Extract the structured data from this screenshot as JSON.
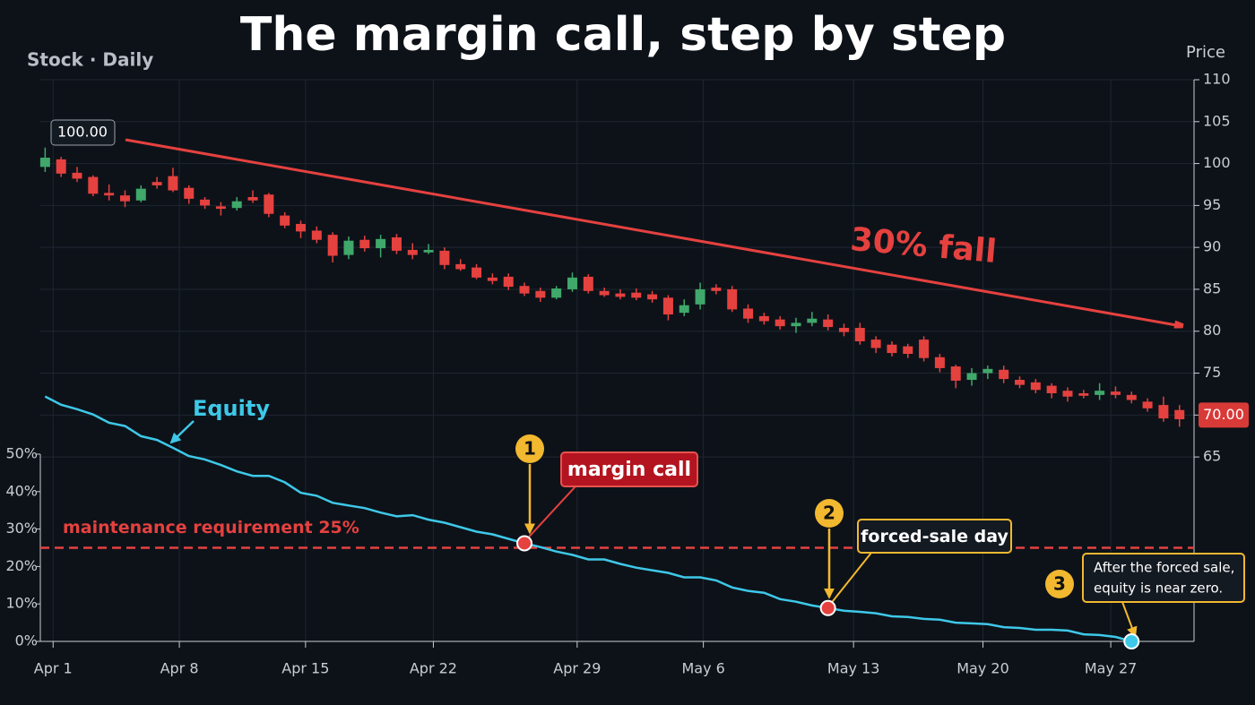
{
  "chart_data": {
    "type": "candlestick",
    "title": "The margin call, step by step",
    "subtitle": "Stock · Daily",
    "y_label": "Price",
    "up_color": "#3fa86a",
    "down_color": "#e5413f",
    "grid": true,
    "x": [
      0,
      1,
      2,
      3,
      4,
      5,
      6,
      7,
      8,
      9,
      10,
      11,
      12,
      13,
      14,
      15,
      16,
      17,
      18,
      19,
      20,
      21,
      22,
      23,
      24,
      25,
      26,
      27,
      28,
      29,
      30,
      31,
      32,
      33,
      34,
      35,
      36,
      37,
      38,
      39,
      40,
      41,
      42,
      43,
      44,
      45,
      46,
      47,
      48,
      49,
      50,
      51,
      52,
      53,
      54,
      55,
      56,
      57,
      58,
      59,
      60,
      61,
      62,
      63,
      64,
      65,
      66,
      67,
      68,
      69,
      70,
      71
    ],
    "open": [
      99.6,
      100.5,
      98.9,
      98.4,
      96.5,
      96.2,
      95.6,
      97.8,
      98.5,
      97.1,
      95.7,
      94.9,
      94.7,
      96.0,
      96.3,
      93.8,
      92.8,
      92.0,
      91.5,
      89.1,
      90.9,
      89.9,
      91.2,
      89.7,
      89.4,
      89.6,
      88.0,
      87.6,
      86.4,
      86.5,
      85.4,
      84.8,
      84.0,
      85.0,
      86.5,
      84.8,
      84.5,
      84.6,
      84.4,
      84.0,
      82.2,
      83.2,
      85.2,
      85.0,
      82.7,
      81.8,
      81.4,
      80.6,
      81.0,
      81.4,
      80.4,
      80.4,
      79.0,
      78.4,
      78.2,
      79.0,
      76.9,
      75.8,
      74.2,
      75.0,
      75.4,
      74.2,
      73.9,
      73.5,
      72.9,
      72.6,
      72.4,
      72.8,
      72.4,
      71.6,
      71.2,
      70.6
    ],
    "high": [
      101.9,
      100.8,
      99.6,
      98.6,
      97.5,
      96.8,
      97.4,
      98.4,
      99.5,
      97.4,
      96.0,
      95.4,
      96.0,
      96.8,
      96.5,
      94.2,
      93.2,
      92.5,
      91.8,
      91.3,
      91.4,
      91.5,
      91.6,
      90.5,
      90.4,
      90.0,
      88.6,
      88.0,
      86.9,
      86.9,
      85.8,
      85.2,
      85.4,
      87.0,
      86.8,
      85.2,
      85.0,
      85.1,
      84.8,
      84.3,
      83.8,
      85.8,
      85.6,
      85.4,
      83.2,
      82.2,
      81.8,
      81.6,
      82.3,
      82.0,
      80.9,
      81.0,
      79.4,
      78.8,
      78.5,
      79.4,
      77.3,
      76.0,
      75.6,
      75.9,
      75.9,
      74.6,
      74.3,
      73.8,
      73.3,
      73.0,
      73.8,
      73.4,
      72.8,
      72.0,
      72.2,
      71.2
    ],
    "low": [
      99.0,
      98.4,
      97.8,
      96.1,
      95.6,
      94.8,
      95.4,
      97.0,
      96.6,
      95.2,
      94.6,
      93.8,
      94.4,
      95.3,
      93.6,
      92.3,
      91.1,
      90.5,
      88.2,
      88.6,
      89.5,
      88.8,
      89.2,
      88.6,
      89.2,
      87.4,
      87.2,
      86.2,
      85.6,
      84.9,
      84.2,
      83.5,
      83.8,
      84.7,
      84.5,
      84.1,
      83.8,
      83.7,
      83.4,
      81.3,
      81.8,
      82.6,
      84.4,
      82.3,
      81.0,
      80.8,
      80.2,
      79.8,
      80.6,
      80.1,
      79.4,
      78.4,
      77.4,
      77.0,
      76.8,
      76.4,
      75.1,
      73.2,
      73.5,
      74.3,
      73.8,
      73.2,
      72.6,
      72.0,
      71.6,
      72.0,
      71.8,
      72.0,
      71.4,
      70.4,
      69.2,
      68.6
    ],
    "close": [
      100.7,
      98.8,
      98.2,
      96.4,
      96.2,
      95.5,
      97.0,
      97.4,
      96.8,
      95.8,
      95.0,
      94.6,
      95.5,
      95.6,
      94.0,
      92.6,
      91.9,
      90.9,
      89.0,
      90.8,
      89.9,
      91.0,
      89.6,
      89.1,
      89.7,
      87.9,
      87.4,
      86.4,
      86.0,
      85.3,
      84.5,
      84.0,
      85.1,
      86.4,
      84.8,
      84.3,
      84.1,
      84.0,
      83.8,
      82.0,
      83.1,
      85.0,
      84.8,
      82.6,
      81.5,
      81.2,
      80.6,
      81.0,
      81.5,
      80.5,
      79.9,
      78.8,
      78.0,
      77.4,
      77.3,
      76.8,
      75.6,
      74.1,
      75.0,
      75.5,
      74.3,
      73.6,
      73.0,
      72.6,
      72.2,
      72.3,
      72.9,
      72.4,
      71.8,
      70.8,
      69.6,
      69.5
    ],
    "xlim": [
      -0.3,
      71.8
    ],
    "xticks": [
      {
        "value": 0.5,
        "label": "Apr 1"
      },
      {
        "value": 8.4,
        "label": "Apr 8"
      },
      {
        "value": 16.3,
        "label": "Apr 15"
      },
      {
        "value": 24.3,
        "label": "Apr 22"
      },
      {
        "value": 33.3,
        "label": "Apr 29"
      },
      {
        "value": 41.2,
        "label": "May 6"
      },
      {
        "value": 50.6,
        "label": "May 13"
      },
      {
        "value": 58.7,
        "label": "May 20"
      },
      {
        "value": 66.7,
        "label": "May 27"
      }
    ],
    "ylim": [
      43,
      110
    ],
    "yticks": [
      65,
      70,
      75,
      80,
      85,
      90,
      95,
      100,
      105,
      110
    ],
    "y2lim": [
      0,
      150
    ],
    "y2ticks": [
      {
        "value": 0,
        "label": "0%"
      },
      {
        "value": 10,
        "label": "10%"
      },
      {
        "value": 20,
        "label": "20%"
      },
      {
        "value": 30,
        "label": "30%"
      },
      {
        "value": 40,
        "label": "40%"
      },
      {
        "value": 50,
        "label": "50%"
      }
    ],
    "series": [
      {
        "name": "Equity",
        "color": "#3ec8e8",
        "axis": "y2",
        "values": [
          65.4,
          63.2,
          62,
          60.6,
          58.4,
          57.5,
          54.8,
          53.8,
          51.7,
          49.5,
          48.6,
          47.1,
          45.4,
          44.2,
          44.2,
          42.5,
          39.7,
          38.9,
          37,
          36.3,
          35.6,
          34.4,
          33.4,
          33.7,
          32.5,
          31.7,
          30.5,
          29.3,
          28.6,
          27.4,
          26.2,
          25.2,
          24,
          23.1,
          21.9,
          21.9,
          20.7,
          19.7,
          19,
          18.3,
          17.1,
          17.1,
          16.3,
          14.4,
          13.5,
          13,
          11.3,
          10.6,
          9.6,
          8.9,
          8.2,
          7.9,
          7.5,
          6.7,
          6.5,
          6,
          5.8,
          5,
          4.8,
          4.6,
          3.8,
          3.6,
          3.1,
          3.1,
          2.9,
          1.9,
          1.7,
          1.2,
          0,
          null,
          null,
          null
        ]
      }
    ],
    "reference_line": {
      "label": "maintenance requirement 25%",
      "value": 25,
      "axis": "y2",
      "color": "#e5413f"
    },
    "price_tags": [
      {
        "value": 100,
        "label": "100.00"
      },
      {
        "value": 70,
        "label": "70.00"
      }
    ],
    "trend_label": "30% fall",
    "steps": [
      {
        "number": "1",
        "label": "margin call"
      },
      {
        "number": "2",
        "label": "forced-sale day"
      },
      {
        "number": "3",
        "label": [
          "After the forced sale,",
          "equity is near zero."
        ]
      }
    ]
  }
}
